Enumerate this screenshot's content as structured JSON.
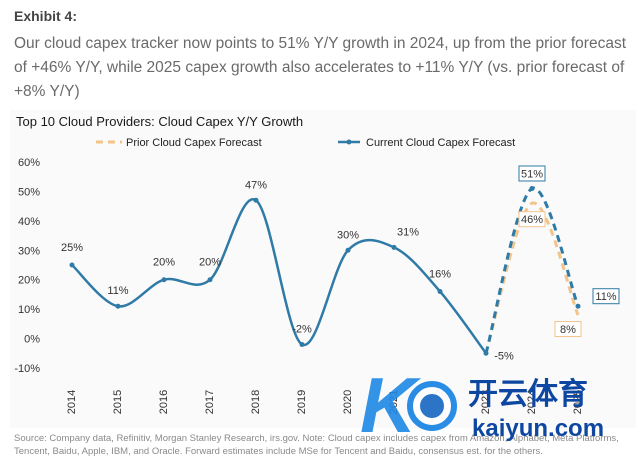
{
  "header": {
    "exhibit": "Exhibit 4:",
    "headline": "Our cloud capex tracker now points to 51% Y/Y growth in 2024, up from the prior forecast of +46% Y/Y, while 2025 capex growth also accelerates to +11% Y/Y (vs. prior forecast of +8% Y/Y)"
  },
  "chart_data": {
    "type": "line",
    "title": "Top 10 Cloud Providers: Cloud Capex Y/Y Growth",
    "categories": [
      "2014",
      "2015",
      "2016",
      "2017",
      "2018",
      "2019",
      "2020",
      "2021",
      "2022",
      "2023",
      "2024",
      "2025"
    ],
    "ylim": [
      -10,
      60
    ],
    "yticks": [
      -10,
      0,
      10,
      20,
      30,
      40,
      50,
      60
    ],
    "ytick_labels": [
      "-10%",
      "0%",
      "10%",
      "20%",
      "30%",
      "40%",
      "50%",
      "60%"
    ],
    "grid": false,
    "legend_position": "top",
    "series": [
      {
        "name": "Prior Cloud Capex Forecast",
        "color": "#f2c48a",
        "style": "dashed",
        "values": [
          null,
          null,
          null,
          null,
          null,
          null,
          null,
          null,
          null,
          -5,
          46,
          8
        ],
        "labels": [
          "",
          "",
          "",
          "",
          "",
          "",
          "",
          "",
          "",
          "",
          "46%",
          "8%"
        ]
      },
      {
        "name": "Current Cloud Capex Forecast",
        "color": "#2f7aa6",
        "style": "solid-then-dashed",
        "values": [
          25,
          11,
          20,
          20,
          47,
          -2,
          30,
          31,
          16,
          -5,
          51,
          11
        ],
        "labels": [
          "25%",
          "11%",
          "20%",
          "20%",
          "47%",
          "-2%",
          "30%",
          "31%",
          "16%",
          "-5%",
          "51%",
          "11%"
        ]
      }
    ]
  },
  "source": "Source: Company data, Refinitiv, Morgan Stanley Research, irs.gov. Note: Cloud capex includes capex from Amazon, Alphabet, Meta Platforms, Tencent, Baidu, Apple, IBM, and Oracle. Forward estimates include MSe for Tencent and Baidu, consensus est. for the others.",
  "watermark": {
    "brand": "开云体育",
    "domain": "kaiyun.com",
    "colors": [
      "#1e88e5",
      "#0d47a1"
    ]
  }
}
